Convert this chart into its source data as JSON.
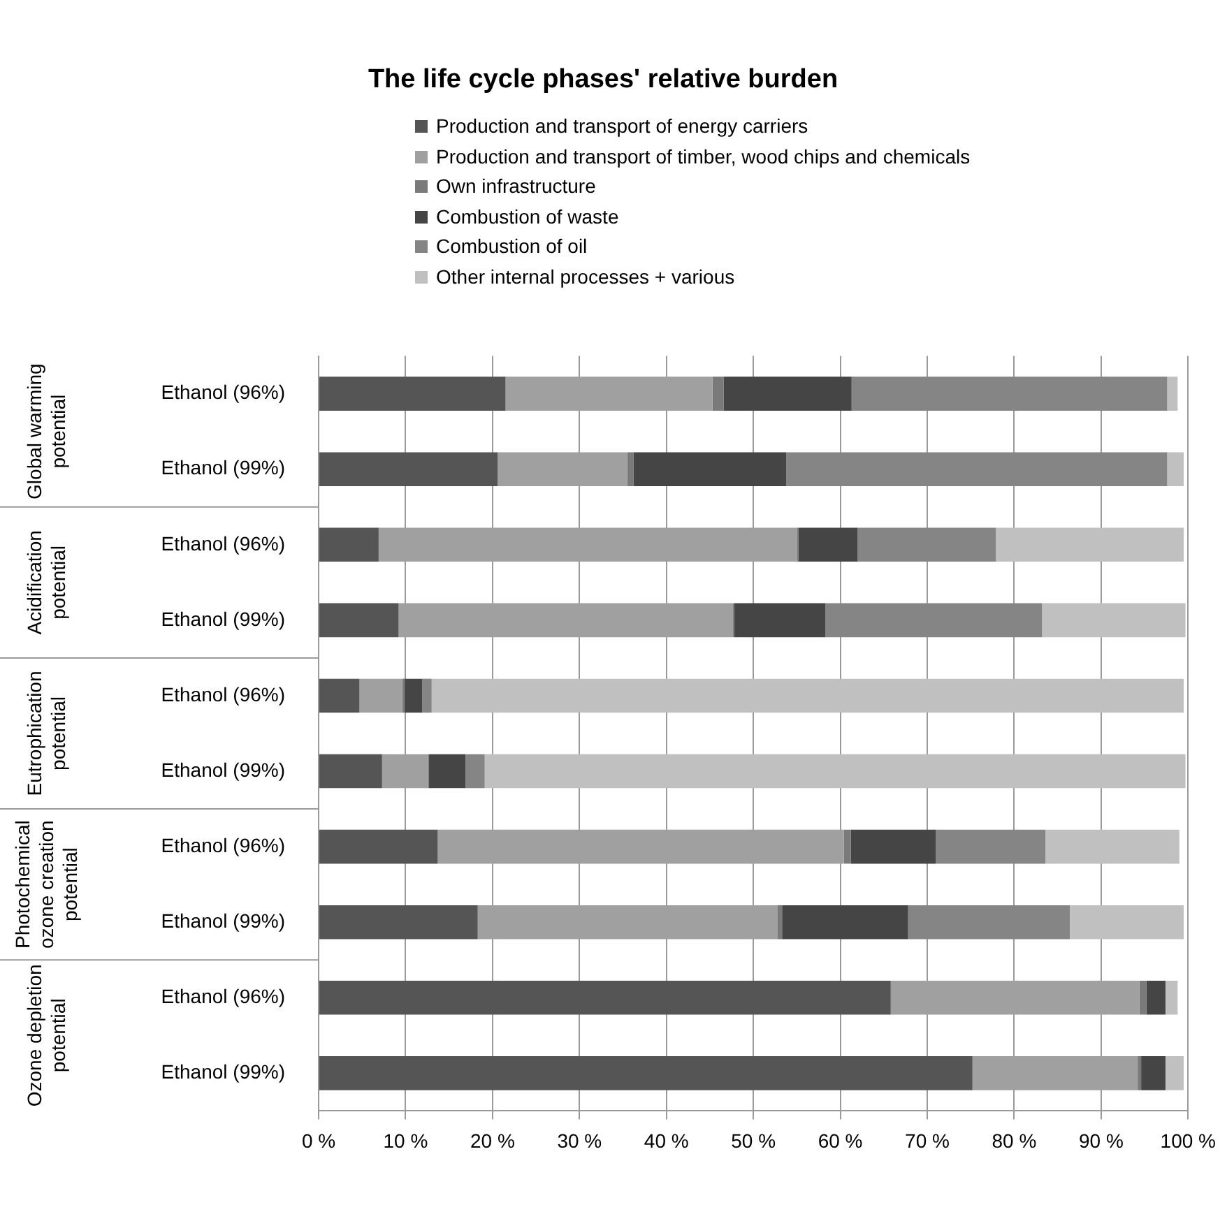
{
  "chart_data": {
    "type": "bar",
    "orientation": "horizontal",
    "stacked": true,
    "title": "The life cycle phases' relative burden",
    "categories": [
      "Ethanol (96%)",
      "Ethanol (99%)",
      "Ethanol (96%)",
      "Ethanol (99%)",
      "Ethanol (96%)",
      "Ethanol (99%)",
      "Ethanol (96%)",
      "Ethanol (99%)",
      "Ethanol (96%)",
      "Ethanol (99%)"
    ],
    "series": [
      {
        "name": "Production and transport of energy carriers",
        "color": "#555555",
        "values": [
          21.5,
          20.6,
          6.9,
          9.2,
          4.7,
          7.3,
          13.7,
          18.3,
          65.8,
          75.2
        ]
      },
      {
        "name": "Production and transport of timber, wood chips and chemicals",
        "color": "#a0a0a0",
        "values": [
          23.8,
          14.9,
          48.1,
          38.4,
          4.9,
          5.3,
          46.7,
          34.5,
          28.6,
          19.0
        ]
      },
      {
        "name": "Own infrastructure",
        "color": "#7a7a7a",
        "values": [
          1.3,
          0.7,
          0.2,
          0.2,
          0.3,
          0.1,
          0.8,
          0.5,
          0.8,
          0.4
        ]
      },
      {
        "name": "Combustion of waste",
        "color": "#454545",
        "values": [
          14.7,
          17.6,
          6.8,
          10.5,
          2.0,
          4.2,
          9.8,
          14.5,
          2.2,
          2.8
        ]
      },
      {
        "name": "Combustion of oil",
        "color": "#858585",
        "values": [
          36.3,
          43.8,
          15.9,
          24.9,
          1.1,
          2.2,
          12.6,
          18.6,
          0,
          0
        ]
      },
      {
        "name": "Other internal processes + various",
        "color": "#c0c0c0",
        "values": [
          1.2,
          1.9,
          21.6,
          16.5,
          86.5,
          80.6,
          15.4,
          13.1,
          1.4,
          2.1
        ]
      }
    ],
    "xlim": [
      0,
      100
    ],
    "xticks": [
      {
        "value": 0,
        "label": "0 %"
      },
      {
        "value": 10,
        "label": "10 %"
      },
      {
        "value": 20,
        "label": "20 %"
      },
      {
        "value": 30,
        "label": "30 %"
      },
      {
        "value": 40,
        "label": "40 %"
      },
      {
        "value": 50,
        "label": "50 %"
      },
      {
        "value": 60,
        "label": "60 %"
      },
      {
        "value": 70,
        "label": "70 %"
      },
      {
        "value": 80,
        "label": "80 %"
      },
      {
        "value": 90,
        "label": "90 %"
      },
      {
        "value": 100,
        "label": "100 %"
      }
    ],
    "grid": "x",
    "legend": "top",
    "annotations": [
      "Global warming potential",
      "Acidification potential",
      "Eutrophication potential",
      "Photochemical ozone creation potential",
      "Ozone depletion potential"
    ]
  }
}
